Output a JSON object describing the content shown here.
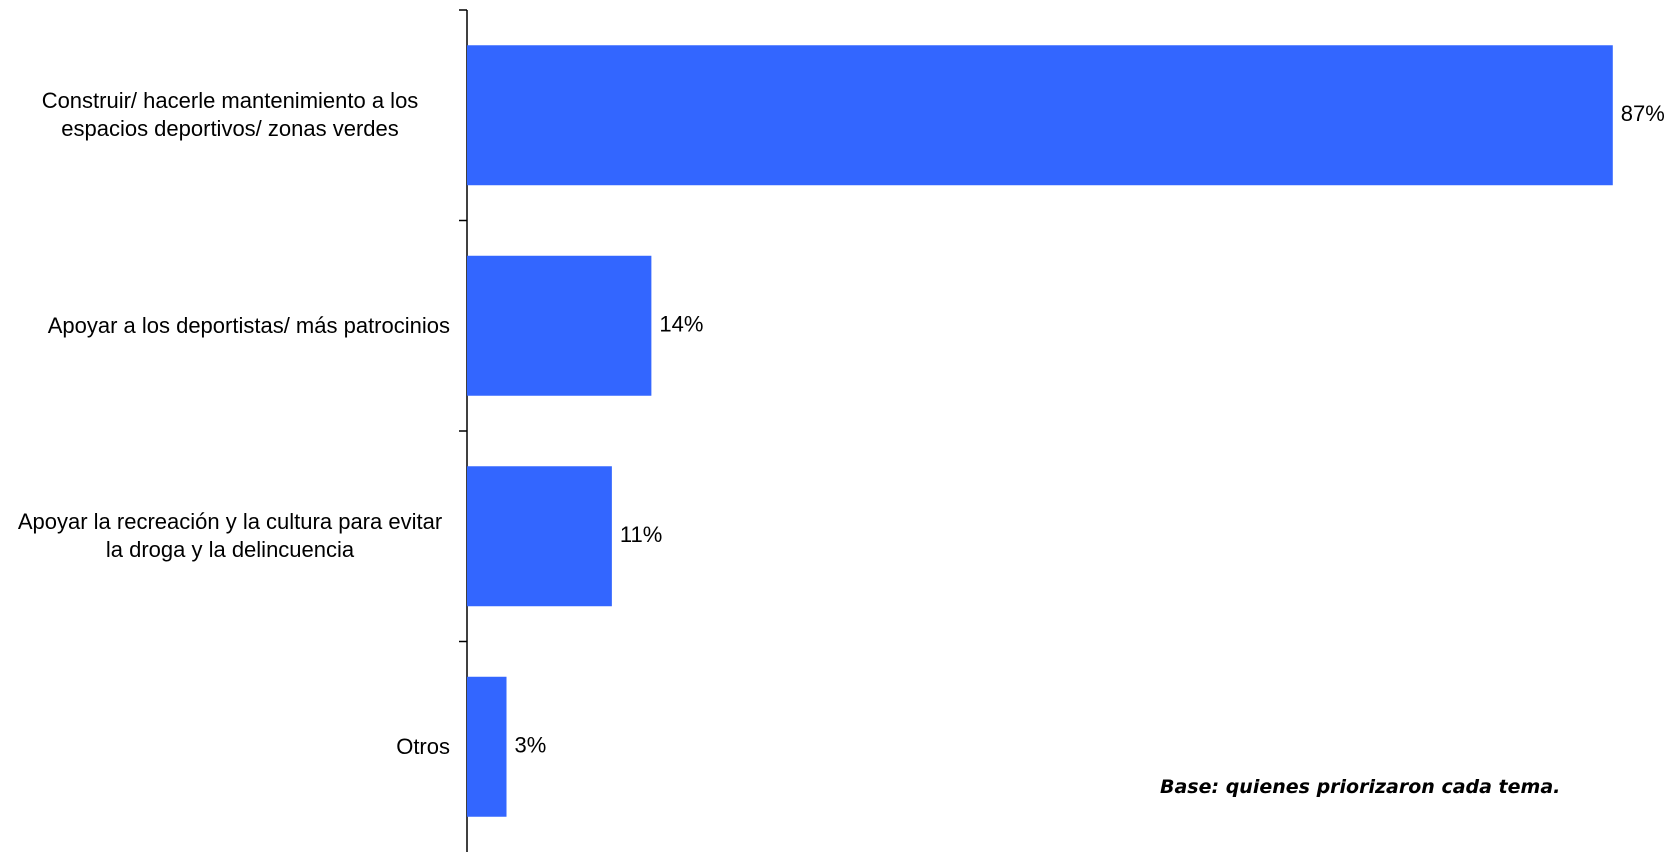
{
  "chart_data": {
    "type": "bar",
    "orientation": "horizontal",
    "categories": [
      "Construir/ hacerle mantenimiento a los espacios deportivos/ zonas verdes",
      "Apoyar a los deportistas/ más patrocinios",
      "Apoyar la recreación y la cultura para evitar la droga y la delincuencia",
      "Otros"
    ],
    "values": [
      87,
      14,
      11,
      3
    ],
    "value_labels": [
      "87%",
      "14%",
      "11%",
      "3%"
    ],
    "color": "#3366ff",
    "xlim": [
      0,
      100
    ],
    "note": "Base: quienes priorizaron cada tema."
  }
}
